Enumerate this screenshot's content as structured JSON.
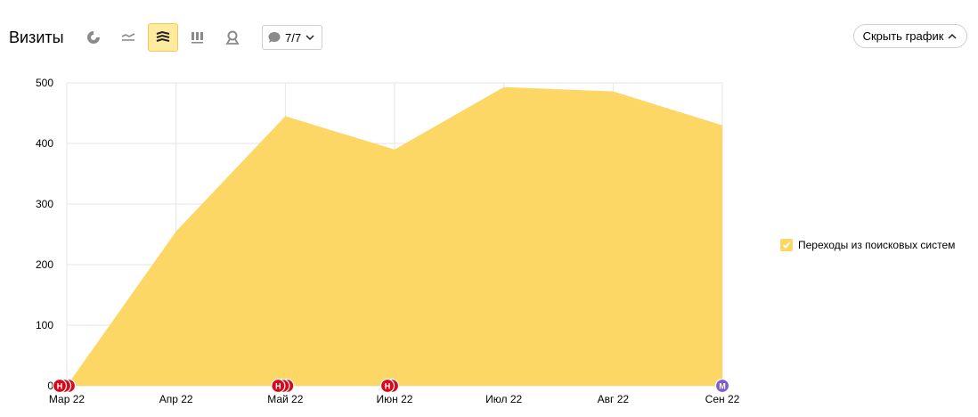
{
  "header": {
    "title": "Визиты",
    "annotations_count": "7/7",
    "hide_chart_label": "Скрыть график",
    "chart_type_buttons": [
      {
        "name": "pie-chart-icon",
        "active": false
      },
      {
        "name": "line-chart-icon",
        "active": false
      },
      {
        "name": "area-chart-icon",
        "active": true
      },
      {
        "name": "bar-chart-icon",
        "active": false
      },
      {
        "name": "map-icon",
        "active": false
      }
    ]
  },
  "colors": {
    "area_fill": "#fdd766",
    "accent": "#ffeba0",
    "marker_red": "#d40a1d",
    "marker_purple": "#7e5bc6"
  },
  "chart_data": {
    "type": "area",
    "categories": [
      "Мар 22",
      "Апр 22",
      "Май 22",
      "Июн 22",
      "Июл 22",
      "Авг 22",
      "Сен 22"
    ],
    "series": [
      {
        "name": "Переходы из поисковых систем",
        "values": [
          0,
          255,
          445,
          390,
          493,
          486,
          430
        ]
      }
    ],
    "ylim": [
      0,
      500
    ],
    "yticks": [
      "0",
      "100",
      "200",
      "300",
      "400",
      "500"
    ],
    "grid": true,
    "legend_position": "right",
    "annotations": [
      {
        "category_index": 0,
        "label": "Н",
        "count": 3,
        "color": "red"
      },
      {
        "category_index": 2,
        "label": "Н",
        "count": 3,
        "color": "red"
      },
      {
        "category_index": 3,
        "label": "Н",
        "count": 2,
        "color": "red"
      },
      {
        "category_index": 6,
        "label": "М",
        "count": 1,
        "color": "purple"
      }
    ]
  }
}
